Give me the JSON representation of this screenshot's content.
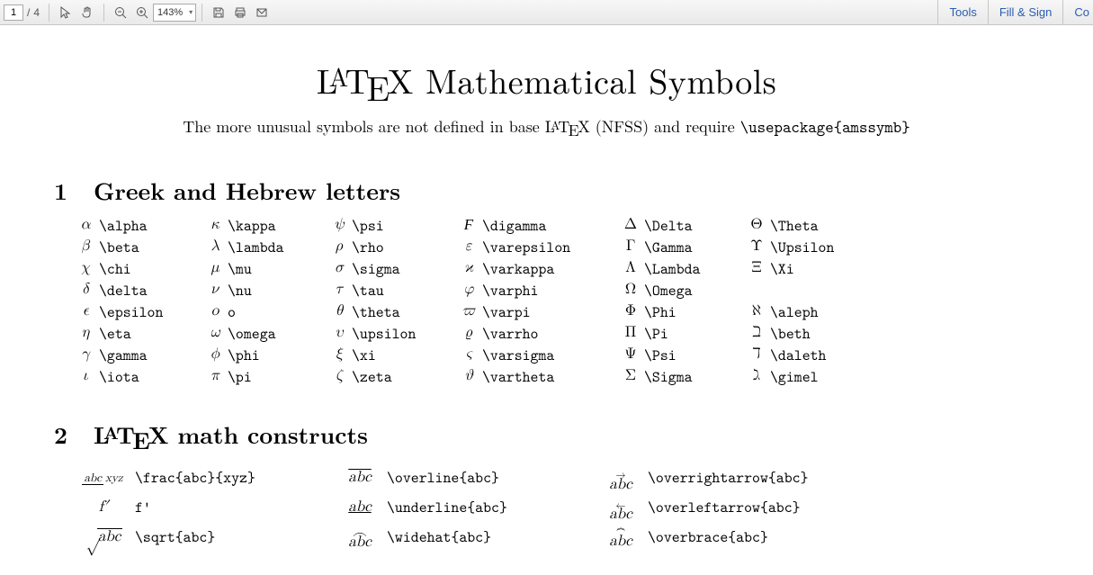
{
  "toolbar": {
    "page_current": "1",
    "page_total": "4",
    "zoom_value": "143%",
    "tools_label": "Tools",
    "fill_sign_label": "Fill & Sign",
    "comment_label": "Co"
  },
  "doc": {
    "title_prefix": "L",
    "title_a": "A",
    "title_t": "T",
    "title_e": "E",
    "title_x": "X",
    "title_rest": " Mathematical Symbols",
    "subtitle_pre": "The more unusual symbols are not defined in base ",
    "subtitle_mid": " (NFSS) and require ",
    "subtitle_cmd": "\\usepackage{amssymb}",
    "section1_num": "1",
    "section1_title": "Greek and Hebrew letters",
    "section2_num": "2",
    "section2_title_rest": " math constructs"
  },
  "greek": {
    "rows": [
      [
        "α",
        "\\alpha",
        "κ",
        "\\kappa",
        "ψ",
        "\\psi",
        "Ϝ",
        "\\digamma",
        "Δ",
        "\\Delta",
        "Θ",
        "\\Theta"
      ],
      [
        "β",
        "\\beta",
        "λ",
        "\\lambda",
        "ρ",
        "\\rho",
        "ε",
        "\\varepsilon",
        "Γ",
        "\\Gamma",
        "Υ",
        "\\Upsilon"
      ],
      [
        "χ",
        "\\chi",
        "μ",
        "\\mu",
        "σ",
        "\\sigma",
        "ϰ",
        "\\varkappa",
        "Λ",
        "\\Lambda",
        "Ξ",
        "\\Xi"
      ],
      [
        "δ",
        "\\delta",
        "ν",
        "\\nu",
        "τ",
        "\\tau",
        "φ",
        "\\varphi",
        "Ω",
        "\\Omega",
        "",
        ""
      ],
      [
        "ϵ",
        "\\epsilon",
        "o",
        "o",
        "θ",
        "\\theta",
        "ϖ",
        "\\varpi",
        "Φ",
        "\\Phi",
        "ℵ",
        "\\aleph"
      ],
      [
        "η",
        "\\eta",
        "ω",
        "\\omega",
        "υ",
        "\\upsilon",
        "ϱ",
        "\\varrho",
        "Π",
        "\\Pi",
        "ℶ",
        "\\beth"
      ],
      [
        "γ",
        "\\gamma",
        "ϕ",
        "\\phi",
        "ξ",
        "\\xi",
        "ς",
        "\\varsigma",
        "Ψ",
        "\\Psi",
        "ℸ",
        "\\daleth"
      ],
      [
        "ι",
        "\\iota",
        "π",
        "\\pi",
        "ζ",
        "\\zeta",
        "ϑ",
        "\\vartheta",
        "Σ",
        "\\Sigma",
        "ℷ",
        "\\gimel"
      ]
    ],
    "upright_cols": [
      8,
      10
    ]
  },
  "constructs": {
    "r1": {
      "c1_num": "abc",
      "c1_den": "xyz",
      "c1_cmd": "\\frac{abc}{xyz}",
      "c2_sym": "abc",
      "c2_cmd": "\\overline{abc}",
      "c3_sym": "abc",
      "c3_cmd": "\\overrightarrow{abc}"
    },
    "r2": {
      "c1_sym": "f′",
      "c1_cmd": "f'",
      "c2_sym": "abc",
      "c2_cmd": "\\underline{abc}",
      "c3_sym": "abc",
      "c3_cmd": "\\overleftarrow{abc}"
    },
    "r3": {
      "c1_sym": "abc",
      "c1_cmd": "\\sqrt{abc}",
      "c2_sym": "abc",
      "c2_cmd": "\\widehat{abc}",
      "c3_sym": "abc",
      "c3_cmd": "\\overbrace{abc}"
    }
  }
}
